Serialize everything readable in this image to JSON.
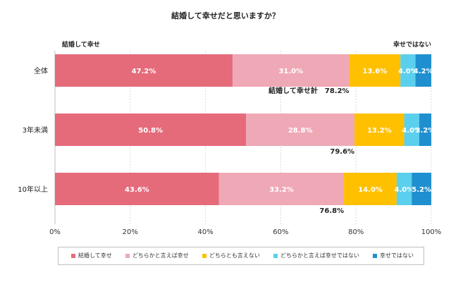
{
  "chart_data": {
    "type": "bar",
    "orientation": "horizontal",
    "stacked": true,
    "title": "結婚して幸せだと思いますか？",
    "categories": [
      "全体",
      "3年未満",
      "10年以上"
    ],
    "series": [
      {
        "name": "結婚して幸せ",
        "values": [
          47.2,
          50.8,
          43.6
        ],
        "labels": [
          "47.2%",
          "50.8%",
          "43.6%"
        ],
        "color": "#e56b7b"
      },
      {
        "name": "どちらかと言えば幸せ",
        "values": [
          31.0,
          28.8,
          33.2
        ],
        "labels": [
          "31.0%",
          "28.8%",
          "33.2%"
        ],
        "color": "#efa8b6"
      },
      {
        "name": "どちらとも言えない",
        "values": [
          13.6,
          13.2,
          14.0
        ],
        "labels": [
          "13.6%",
          "13.2%",
          "14.0%"
        ],
        "color": "#ffc000"
      },
      {
        "name": "どちらかと言えば幸せではない",
        "values": [
          4.0,
          4.0,
          4.0
        ],
        "labels": [
          "4.0%",
          "4.0%",
          "4.0%"
        ],
        "color": "#5bcfee"
      },
      {
        "name": "幸せではない",
        "values": [
          4.2,
          3.2,
          5.2
        ],
        "labels": [
          "4.2%",
          "3.2%",
          "5.2%"
        ],
        "color": "#1f8fcf"
      }
    ],
    "totals": [
      {
        "text": "結婚して幸せ計　78.2%"
      },
      {
        "text": "79.6%"
      },
      {
        "text": "76.8%"
      }
    ],
    "side_labels": {
      "left": "結婚して幸せ",
      "right": "幸せではない"
    },
    "xlim": [
      0,
      100
    ],
    "xticks": [
      0,
      20,
      40,
      60,
      80,
      100
    ],
    "xtick_labels": [
      "0%",
      "20%",
      "40%",
      "60%",
      "80%",
      "100%"
    ],
    "grid": true,
    "legend_position": "bottom"
  }
}
